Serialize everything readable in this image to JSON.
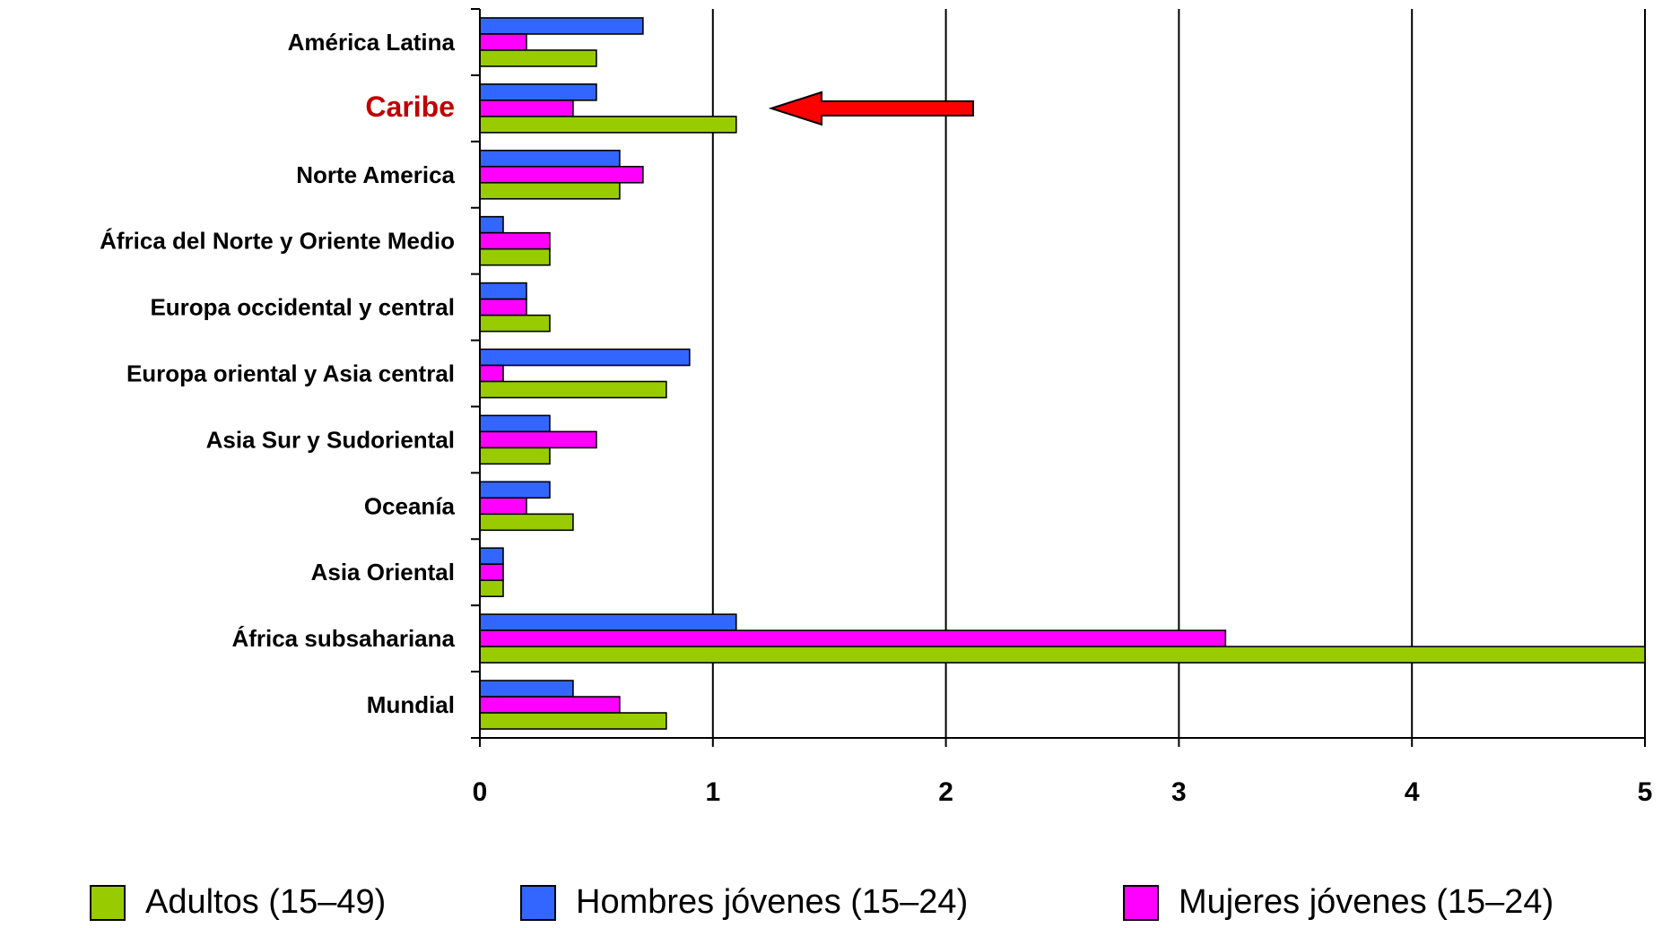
{
  "chart_data": {
    "type": "bar",
    "orientation": "horizontal",
    "categories": [
      "América Latina",
      "Caribe",
      "Norte America",
      "África del Norte y Oriente Medio",
      "Europa occidental y central",
      "Europa oriental y Asia central",
      "Asia Sur y Sudoriental",
      "Oceanía",
      "Asia Oriental",
      "África subsahariana",
      "Mundial"
    ],
    "highlighted_category": "Caribe",
    "highlight_color": "#C00000",
    "series": [
      {
        "name": "Hombres jóvenes (15–24)",
        "color": "#3366FF",
        "values": [
          0.7,
          0.5,
          0.6,
          0.1,
          0.2,
          0.9,
          0.3,
          0.3,
          0.1,
          1.1,
          0.4
        ]
      },
      {
        "name": "Mujeres jóvenes (15–24)",
        "color": "#FF00FF",
        "values": [
          0.2,
          0.4,
          0.7,
          0.3,
          0.2,
          0.1,
          0.5,
          0.2,
          0.1,
          3.2,
          0.6
        ]
      },
      {
        "name": "Adultos (15–49)",
        "color": "#99CC00",
        "values": [
          0.5,
          1.1,
          0.6,
          0.3,
          0.3,
          0.8,
          0.3,
          0.4,
          0.1,
          5.0,
          0.8
        ]
      }
    ],
    "xlim": [
      0,
      5
    ],
    "xticks": [
      "0",
      "1",
      "2",
      "3",
      "4",
      "5"
    ],
    "grid": "vertical",
    "legend": {
      "position": "bottom",
      "order": [
        "Adultos (15–49)",
        "Hombres jóvenes (15–24)",
        "Mujeres jóvenes (15–24)"
      ]
    },
    "annotation": {
      "type": "arrow",
      "color": "#FF0000",
      "points_to": "Caribe"
    },
    "title": "",
    "xlabel": "",
    "ylabel": ""
  }
}
